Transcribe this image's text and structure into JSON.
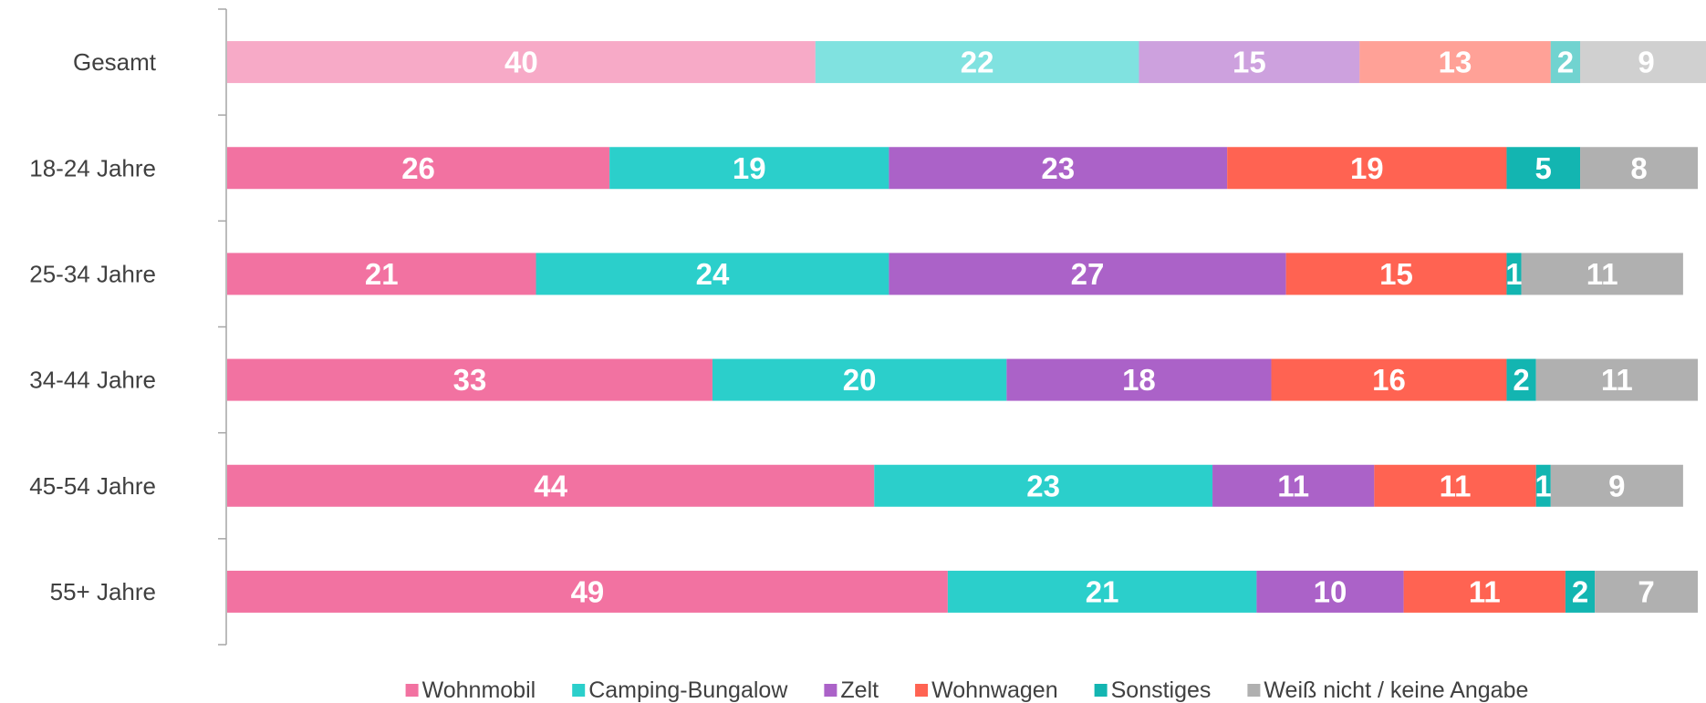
{
  "chart_data": {
    "type": "stacked_bar_horizontal",
    "categories": [
      "Gesamt",
      "18-24 Jahre",
      "25-34 Jahre",
      "34-44 Jahre",
      "45-54 Jahre",
      "55+ Jahre"
    ],
    "series": [
      {
        "name": "Wohnmobil",
        "color": "#f272a1",
        "values": [
          40,
          26,
          21,
          33,
          44,
          49
        ]
      },
      {
        "name": "Camping-Bungalow",
        "color": "#2bcfcb",
        "values": [
          22,
          19,
          24,
          20,
          23,
          21
        ]
      },
      {
        "name": "Zelt",
        "color": "#ab62c8",
        "values": [
          15,
          23,
          27,
          18,
          11,
          10
        ]
      },
      {
        "name": "Wohnwagen",
        "color": "#ff6352",
        "values": [
          13,
          19,
          15,
          16,
          11,
          11
        ]
      },
      {
        "name": "Sonstiges",
        "color": "#13b5b1",
        "values": [
          2,
          5,
          1,
          2,
          1,
          2
        ]
      },
      {
        "name": "Weiß nicht / keine Angabe",
        "color": "#b0b0b0",
        "values": [
          9,
          8,
          11,
          11,
          9,
          7
        ]
      }
    ],
    "legend": "bottom"
  }
}
